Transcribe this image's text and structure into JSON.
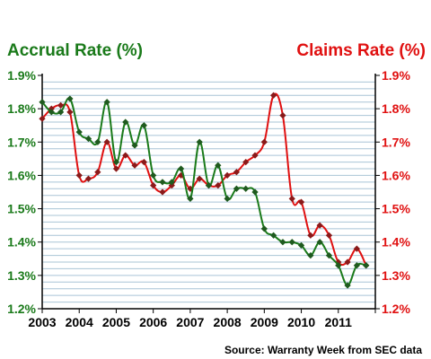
{
  "chart_data": {
    "type": "line",
    "y_left_title": "Accrual Rate (%)",
    "y_right_title": "Claims Rate (%)",
    "source": "Source: Warranty Week from SEC data",
    "ylim": [
      1.2,
      1.9
    ],
    "y_tick_labels": [
      "1.2%",
      "1.3%",
      "1.4%",
      "1.5%",
      "1.6%",
      "1.7%",
      "1.8%",
      "1.9%"
    ],
    "x_tick_labels": [
      "2003",
      "2004",
      "2005",
      "2006",
      "2007",
      "2008",
      "2009",
      "2010",
      "2011"
    ],
    "xlim": [
      2003,
      2012
    ],
    "grid": true,
    "legend": "none",
    "colors": {
      "accrual": "#1a7a1a",
      "claims": "#e01010",
      "accrual_marker": "#1f5a1f",
      "claims_marker": "#8a1a1a",
      "grid": "#a9c4d6",
      "axis": "#000000"
    },
    "series": [
      {
        "key": "accrual",
        "x": [
          2003.0,
          2003.25,
          2003.5,
          2003.75,
          2004.0,
          2004.25,
          2004.5,
          2004.75,
          2005.0,
          2005.25,
          2005.5,
          2005.75,
          2006.0,
          2006.25,
          2006.5,
          2006.75,
          2007.0,
          2007.25,
          2007.5,
          2007.75,
          2008.0,
          2008.25,
          2008.5,
          2008.75,
          2009.0,
          2009.25,
          2009.5,
          2009.75,
          2010.0,
          2010.25,
          2010.5,
          2010.75,
          2011.0,
          2011.25,
          2011.5,
          2011.75
        ],
        "values": [
          1.82,
          1.79,
          1.79,
          1.83,
          1.73,
          1.71,
          1.7,
          1.82,
          1.64,
          1.76,
          1.69,
          1.75,
          1.6,
          1.58,
          1.58,
          1.62,
          1.53,
          1.7,
          1.57,
          1.63,
          1.53,
          1.56,
          1.56,
          1.55,
          1.44,
          1.42,
          1.4,
          1.4,
          1.39,
          1.36,
          1.4,
          1.36,
          1.33,
          1.27,
          1.33,
          1.33
        ]
      },
      {
        "key": "claims",
        "x": [
          2003.0,
          2003.25,
          2003.5,
          2003.75,
          2004.0,
          2004.25,
          2004.5,
          2004.75,
          2005.0,
          2005.25,
          2005.5,
          2005.75,
          2006.0,
          2006.25,
          2006.5,
          2006.75,
          2007.0,
          2007.25,
          2007.5,
          2007.75,
          2008.0,
          2008.25,
          2008.5,
          2008.75,
          2009.0,
          2009.25,
          2009.5,
          2009.75,
          2010.0,
          2010.25,
          2010.5,
          2010.75,
          2011.0,
          2011.25,
          2011.5,
          2011.75
        ],
        "values": [
          1.77,
          1.8,
          1.81,
          1.79,
          1.6,
          1.59,
          1.61,
          1.7,
          1.62,
          1.66,
          1.63,
          1.64,
          1.57,
          1.55,
          1.57,
          1.6,
          1.56,
          1.59,
          1.57,
          1.57,
          1.6,
          1.61,
          1.64,
          1.66,
          1.7,
          1.84,
          1.78,
          1.53,
          1.52,
          1.42,
          1.45,
          1.42,
          1.34,
          1.34,
          1.38,
          1.33
        ]
      }
    ]
  }
}
